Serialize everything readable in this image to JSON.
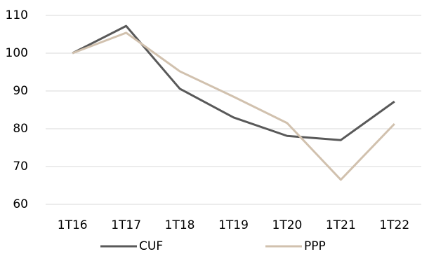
{
  "chart_data": {
    "type": "line",
    "categories": [
      "1T16",
      "1T17",
      "1T18",
      "1T19",
      "1T20",
      "1T21",
      "1T22"
    ],
    "series": [
      {
        "name": "CUF",
        "color": "#595959",
        "values": [
          100,
          107.2,
          90.6,
          83,
          78.1,
          77,
          87.2
        ]
      },
      {
        "name": "PPP",
        "color": "#d1c1ae",
        "values": [
          100,
          105.4,
          95.2,
          88.5,
          81.5,
          66.5,
          81.3
        ]
      }
    ],
    "ylim": [
      60,
      110
    ],
    "yticks": [
      60,
      70,
      80,
      90,
      100,
      110
    ],
    "grid": true
  }
}
